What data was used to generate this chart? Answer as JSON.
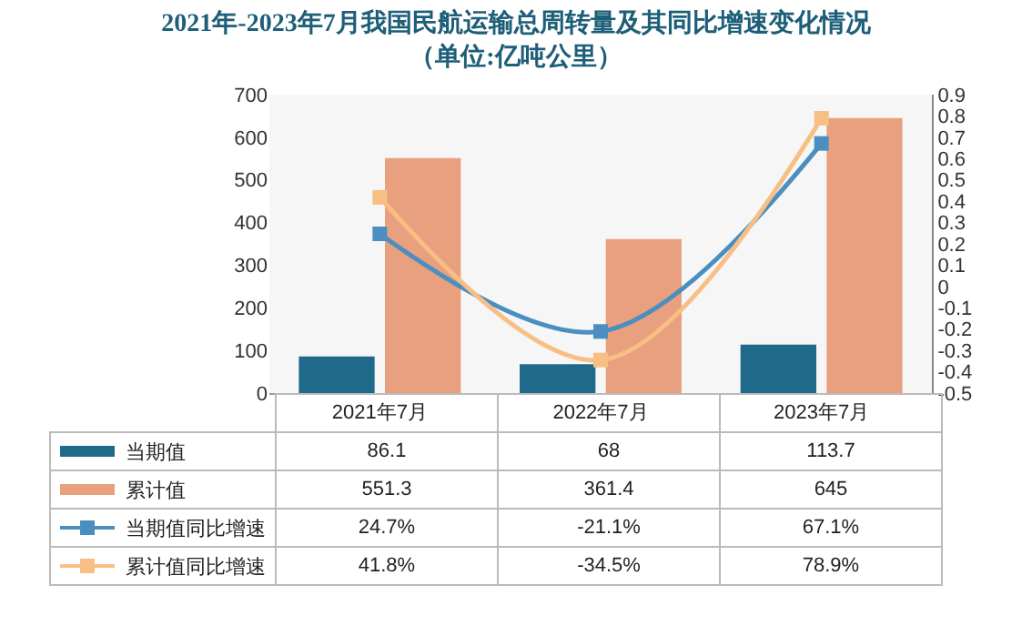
{
  "chart_data": {
    "type": "bar",
    "title": "2021年-2023年7月我国民航运输总周转量及其同比增速变化情况",
    "subtitle": "（单位:亿吨公里）",
    "categories": [
      "2021年7月",
      "2022年7月",
      "2023年7月"
    ],
    "series": [
      {
        "name": "当期值",
        "color": "#1f6a8a",
        "values": [
          86.1,
          68,
          113.7
        ],
        "value_labels": [
          "86.1",
          "68",
          "113.7"
        ]
      },
      {
        "name": "累计值",
        "color": "#e8a07e",
        "values": [
          551.3,
          361.4,
          645
        ],
        "value_labels": [
          "551.3",
          "361.4",
          "645"
        ]
      },
      {
        "name": "当期值同比增速",
        "type": "line",
        "axis": "y2",
        "marker": "square",
        "color": "#4a8fc0",
        "values": [
          0.247,
          -0.211,
          0.671
        ],
        "value_labels": [
          "24.7%",
          "-21.1%",
          "67.1%"
        ]
      },
      {
        "name": "累计值同比增速",
        "type": "line",
        "axis": "y2",
        "marker": "square",
        "color": "#f7bf84",
        "values": [
          0.418,
          -0.345,
          0.789
        ],
        "value_labels": [
          "41.8%",
          "-34.5%",
          "78.9%"
        ]
      }
    ],
    "ylim": [
      0,
      700
    ],
    "yticks": [
      0,
      100,
      200,
      300,
      400,
      500,
      600,
      700
    ],
    "y2lim": [
      -0.5,
      0.9
    ],
    "y2ticks": [
      -0.5,
      -0.4,
      -0.3,
      -0.2,
      -0.1,
      0,
      0.1,
      0.2,
      0.3,
      0.4,
      0.5,
      0.6,
      0.7,
      0.8,
      0.9
    ],
    "legend": "bottom"
  }
}
